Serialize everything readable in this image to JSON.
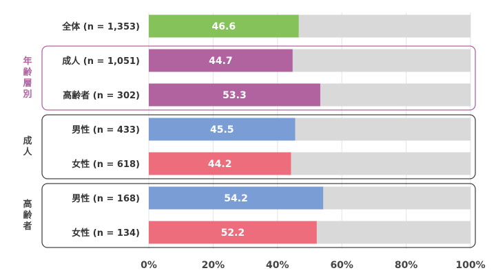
{
  "chart_data": {
    "type": "bar",
    "orientation": "horizontal",
    "stacked_with_remainder": true,
    "categories": [
      "全体 (n = 1,353)",
      "成人 (n = 1,051)",
      "高齢者 (n = 302)",
      "男性 (n = 433)",
      "女性 (n = 618)",
      "男性 (n = 168)",
      "女性 (n = 134)"
    ],
    "values": [
      46.6,
      44.7,
      53.3,
      45.5,
      44.2,
      54.2,
      52.2
    ],
    "value_labels": [
      "46.6",
      "44.7",
      "53.3",
      "45.5",
      "44.2",
      "54.2",
      "52.2"
    ],
    "bar_colors": [
      "#86c25a",
      "#b0639f",
      "#b0639f",
      "#7b9dd6",
      "#ee6d7d",
      "#7b9dd6",
      "#ee6d7d"
    ],
    "remainder_color": "#d9d9d9",
    "xlim": [
      0,
      100
    ],
    "x_ticks": [
      "0%",
      "20%",
      "40%",
      "60%",
      "80%",
      "100%"
    ],
    "grid": true,
    "groups": [
      {
        "label": "年齢層別",
        "rows": [
          1,
          2
        ],
        "color": "#b0639f"
      },
      {
        "label": "成人",
        "rows": [
          3,
          4
        ],
        "color": "#444444"
      },
      {
        "label": "高齢者",
        "rows": [
          5,
          6
        ],
        "color": "#444444"
      }
    ]
  }
}
